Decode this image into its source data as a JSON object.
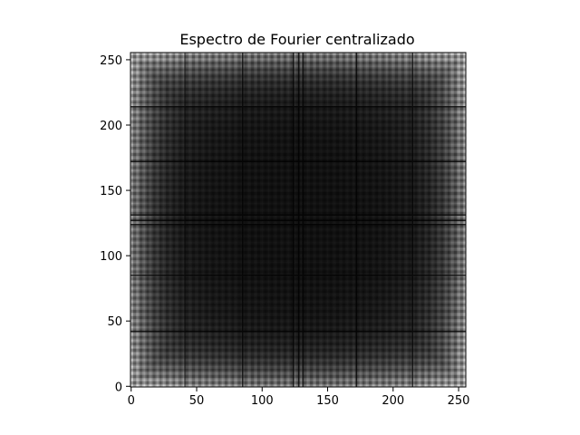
{
  "chart_data": {
    "type": "heatmap",
    "title": "Espectro de Fourier centralizado",
    "xlabel": "",
    "ylabel": "",
    "image_size": [
      256,
      256
    ],
    "colormap": "gray",
    "xlim": [
      -0.5,
      255.5
    ],
    "ylim": [
      255.5,
      -0.5
    ],
    "y_axis_inverted": true,
    "xticks": [
      0,
      50,
      100,
      150,
      200,
      250
    ],
    "yticks": [
      0,
      50,
      100,
      150,
      200,
      250
    ],
    "xtick_labels": [
      "0",
      "50",
      "100",
      "150",
      "200",
      "250"
    ],
    "ytick_labels": [
      "0",
      "50",
      "100",
      "150",
      "200",
      "250"
    ],
    "pattern": {
      "description": "log-magnitude spectrum, bright at image edges and corners, dark in center, overlaid with fine checkerboard periodicity and dark horizontal/vertical lines",
      "checker_period": 5,
      "dark_line_rows": [
        41,
        83,
        124,
        128,
        131,
        170,
        213
      ],
      "dark_line_cols": [
        41,
        85,
        124,
        128,
        131,
        172,
        215
      ]
    },
    "grid": false,
    "legend": "none"
  }
}
